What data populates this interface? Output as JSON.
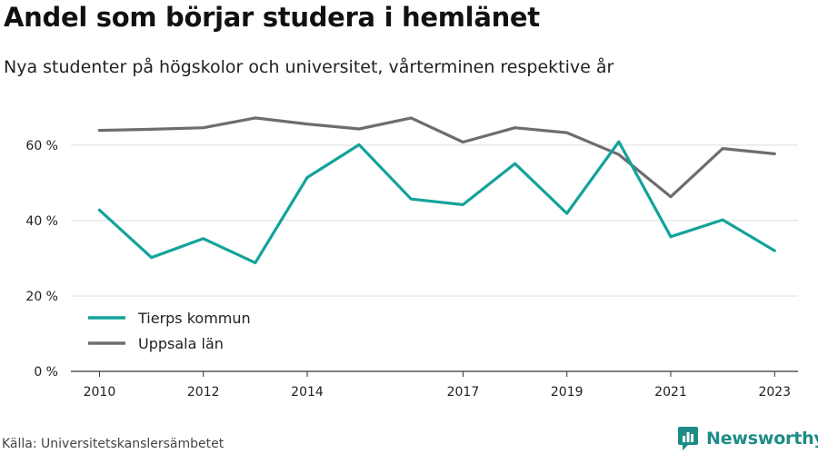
{
  "header": {
    "title": "Andel som börjar studera i hemlänet",
    "subtitle": "Nya studenter på högskolor och universitet, vårterminen respektive år"
  },
  "footer": {
    "source": "Källa: Universitetskanslersämbetet",
    "brand": "Newsworthy",
    "brand_color": "#1e8c86"
  },
  "chart_data": {
    "type": "line",
    "title": "Andel som börjar studera i hemlänet",
    "subtitle": "Nya studenter på högskolor och universitet, vårterminen respektive år",
    "xlabel": "",
    "ylabel": "",
    "x": [
      2010,
      2011,
      2012,
      2013,
      2014,
      2015,
      2016,
      2017,
      2018,
      2019,
      2020,
      2021,
      2022,
      2023
    ],
    "x_tick_values": [
      2010,
      2012,
      2014,
      2017,
      2019,
      2021,
      2023
    ],
    "x_tick_labels": [
      "2010",
      "2012",
      "2014",
      "2017",
      "2019",
      "2021",
      "2023"
    ],
    "y_ticks": [
      0,
      20,
      40,
      60
    ],
    "y_tick_labels": [
      "0 %",
      "20 %",
      "40 %",
      "60 %"
    ],
    "ylim": [
      0,
      72
    ],
    "grid": true,
    "legend_position": "bottom-left",
    "series": [
      {
        "name": "Tierps kommun",
        "color": "#12a39a",
        "values": [
          42.8,
          30.2,
          35.2,
          28.8,
          51.4,
          60.1,
          45.7,
          44.2,
          55.1,
          41.9,
          60.9,
          35.7,
          40.2,
          32.0
        ]
      },
      {
        "name": "Uppsala län",
        "color": "#6e6c70",
        "values": [
          63.9,
          64.2,
          64.6,
          67.2,
          65.6,
          64.3,
          67.2,
          60.8,
          64.6,
          63.3,
          57.5,
          46.3,
          59.1,
          57.7
        ]
      }
    ]
  }
}
